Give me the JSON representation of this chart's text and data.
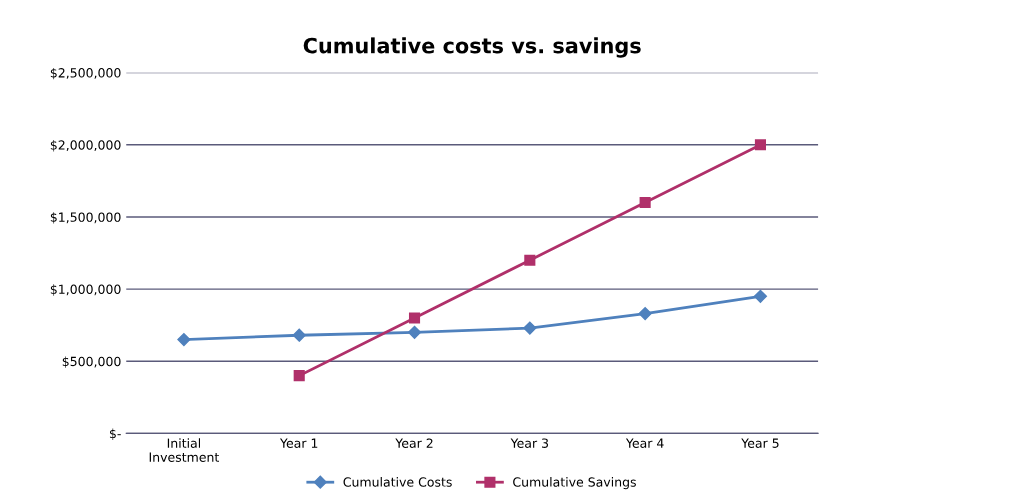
{
  "chart_data": {
    "type": "line",
    "title": "Cumulative costs vs. savings",
    "categories": [
      "Initial\nInvestment",
      "Year 1",
      "Year 2",
      "Year 3",
      "Year 4",
      "Year 5"
    ],
    "series": [
      {
        "name": "Cumulative Costs",
        "color": "#4f81bd",
        "marker": "diamond",
        "values": [
          650000,
          680000,
          700000,
          730000,
          830000,
          950000
        ]
      },
      {
        "name": "Cumulative Savings",
        "color": "#b0306a",
        "marker": "square",
        "values": [
          null,
          400000,
          800000,
          1200000,
          1600000,
          2000000
        ]
      }
    ],
    "ylim": [
      0,
      2500000
    ],
    "yticks": [
      {
        "value": 0,
        "label": "$-"
      },
      {
        "value": 500000,
        "label": "$500,000"
      },
      {
        "value": 1000000,
        "label": "$1,000,000"
      },
      {
        "value": 1500000,
        "label": "$1,500,000"
      },
      {
        "value": 2000000,
        "label": "$2,000,000"
      },
      {
        "value": 2500000,
        "label": "$2,500,000"
      }
    ],
    "grid": "y",
    "legend": "bottom",
    "line_style": "solid"
  }
}
